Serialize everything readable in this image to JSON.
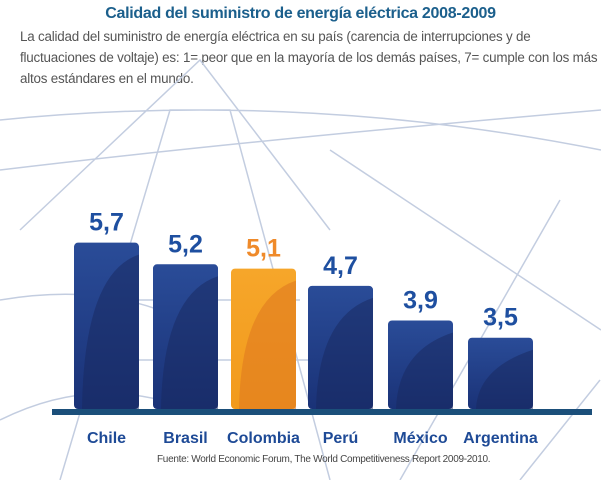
{
  "chart_data": {
    "type": "bar",
    "title": "Calidad del suministro de energía eléctrica 2008-2009",
    "subtitle": "La calidad del suministro de energía eléctrica en su país (carencia de interrupciones y de fluctuaciones de voltaje) es: 1= peor que en la mayoría de los demás países, 7= cumple con los más altos estándares en el mundo.",
    "categories": [
      "Chile",
      "Brasil",
      "Colombia",
      "Perú",
      "México",
      "Argentina"
    ],
    "values": [
      5.7,
      5.2,
      5.1,
      4.7,
      3.9,
      3.5
    ],
    "value_labels": [
      "5,7",
      "5,2",
      "5,1",
      "4,7",
      "3,9",
      "3,5"
    ],
    "highlight": "Colombia",
    "colors": {
      "bar": "#1e3f8a",
      "highlight": "#f39a22",
      "label": "#1e4fa0",
      "highlight_label": "#ef8a2a",
      "baseline": "#1b4f7a"
    },
    "grid": false,
    "source": "Fuente: World Economic Forum, The World Competitiveness Report 2009-2010."
  }
}
